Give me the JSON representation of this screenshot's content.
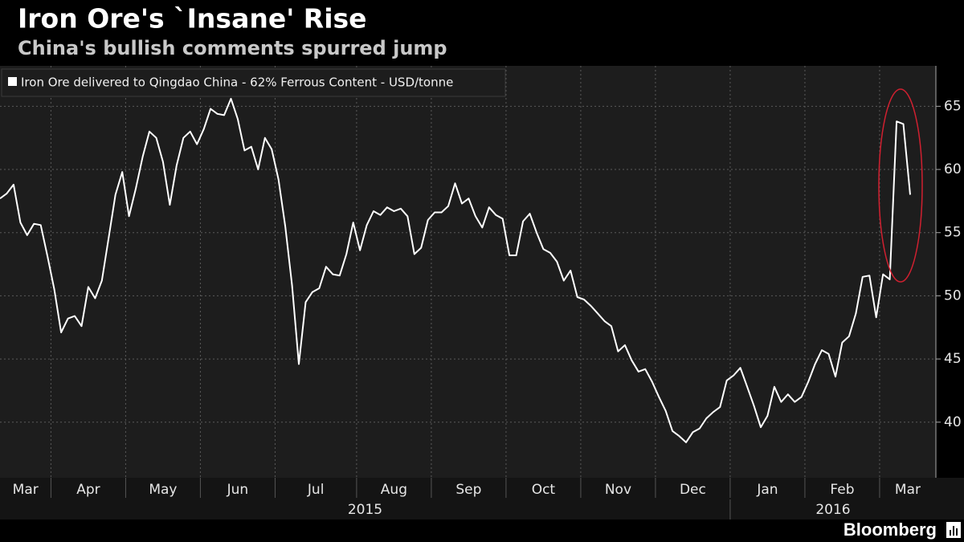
{
  "chart_data": {
    "type": "line",
    "title": "Iron Ore's `Insane' Rise",
    "subtitle": "China's bullish comments spurred jump",
    "source": "Bloomberg",
    "categories": [
      "Mar",
      "Apr",
      "May",
      "Jun",
      "Jul",
      "Aug",
      "Sep",
      "Oct",
      "Nov",
      "Dec",
      "Jan",
      "Feb",
      "Mar"
    ],
    "years": [
      "2015",
      "2016"
    ],
    "series": [
      {
        "name": "Iron Ore delivered to Qingdao China - 62% Ferrous Content - USD/tonne",
        "color": "#ffffff",
        "values": [
          [
            57.7,
            58.1,
            58.8,
            55.8,
            54.8,
            55.7,
            55.6,
            53.1
          ],
          [
            50.5,
            47.1,
            48.2,
            48.4,
            47.6,
            50.7,
            49.8,
            51.2,
            54.6,
            58.0,
            59.8
          ],
          [
            56.3,
            58.5,
            61.0,
            63.0,
            62.5,
            60.6,
            57.2,
            60.3,
            62.5,
            63.0,
            62.0
          ],
          [
            63.2,
            64.8,
            64.4,
            64.3,
            65.6,
            64.0,
            61.5,
            61.8,
            60.0,
            62.5,
            61.6
          ],
          [
            59.2,
            55.5,
            50.8,
            44.6,
            49.5,
            50.3,
            50.6,
            52.3,
            51.7,
            51.6,
            53.3,
            55.8
          ],
          [
            53.6,
            55.6,
            56.7,
            56.4,
            57.0,
            56.7,
            56.9,
            56.3,
            53.3,
            53.8,
            56.0
          ],
          [
            56.6,
            56.6,
            57.1,
            58.9,
            57.3,
            57.7,
            56.3,
            55.4,
            57.0,
            56.4,
            56.1
          ],
          [
            53.2,
            53.2,
            55.9,
            56.5,
            55.0,
            53.7,
            53.4,
            52.7,
            51.2,
            52.0,
            49.9
          ],
          [
            49.7,
            49.2,
            48.6,
            48.0,
            47.6,
            45.6,
            46.1,
            44.9,
            44.0,
            44.2,
            43.2
          ],
          [
            42.0,
            40.9,
            39.3,
            38.9,
            38.4,
            39.2,
            39.5,
            40.3,
            40.8,
            41.2,
            43.3
          ],
          [
            43.7,
            44.3,
            42.8,
            41.3,
            39.6,
            40.5,
            42.8,
            41.6,
            42.2,
            41.6,
            42.0
          ],
          [
            43.2,
            44.6,
            45.7,
            45.4,
            43.6,
            46.3,
            46.8,
            48.6,
            51.5,
            51.6,
            48.3
          ],
          [
            51.7,
            51.3,
            63.8,
            63.6,
            58.0
          ]
        ]
      }
    ],
    "ylim": [
      35.6,
      68.2
    ],
    "yticks": [
      40,
      45,
      50,
      55,
      60,
      65
    ],
    "grid": true
  }
}
